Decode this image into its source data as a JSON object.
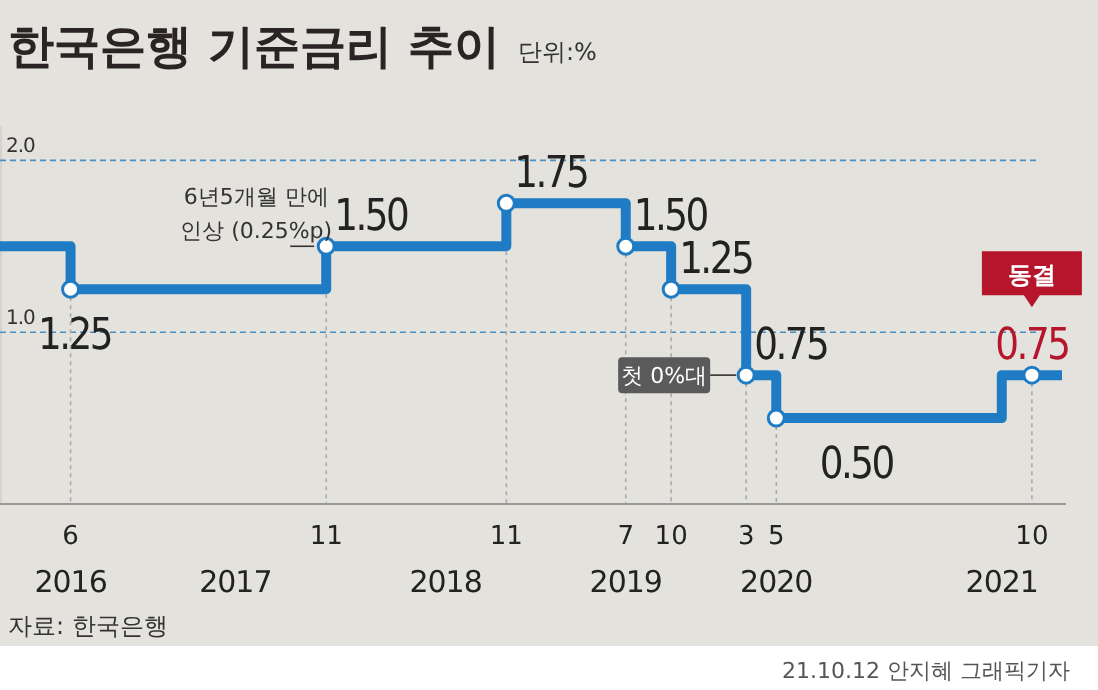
{
  "chart_data": {
    "type": "step",
    "title": "한국은행 기준금리 추이",
    "subtitle": "단위:%",
    "x": [
      "2016-01-10",
      "2016-06",
      "2017-11",
      "2018-11",
      "2019-07",
      "2019-10",
      "2020-03",
      "2020-05",
      "2021-08",
      "2021-10",
      "2021-12"
    ],
    "series": [
      {
        "color": "#1f7cc4",
        "values": [
          1.5,
          1.25,
          1.5,
          1.75,
          1.5,
          1.25,
          0.75,
          0.5,
          0.75,
          0.75,
          0.75
        ],
        "value_labels": [
          null,
          "1.25",
          "1.50",
          "1.75",
          "1.50",
          "1.25",
          "0.75",
          "0.50",
          null,
          "0.75",
          null
        ]
      }
    ],
    "xlim": [
      "2016-01-10",
      "2021-12"
    ],
    "xticks": [
      {
        "value": "2016-06",
        "label": "6"
      },
      {
        "value": "2017-11",
        "label": "11"
      },
      {
        "value": "2018-11",
        "label": "11"
      },
      {
        "value": "2019-07",
        "label": "7"
      },
      {
        "value": "2019-10",
        "label": "10"
      },
      {
        "value": "2020-03",
        "label": "3"
      },
      {
        "value": "2020-05",
        "label": "5"
      },
      {
        "value": "2021-10",
        "label": "10"
      }
    ],
    "x2lim": [
      "2016-01-10",
      "2021-12"
    ],
    "x2ticks": [
      {
        "value": "2016-06",
        "label": "2016"
      },
      {
        "value": "2017-05",
        "label": "2017"
      },
      {
        "value": "2018-07",
        "label": "2018"
      },
      {
        "value": "2019-07",
        "label": "2019"
      },
      {
        "value": "2020-05",
        "label": "2020"
      },
      {
        "value": "2021-08",
        "label": "2021"
      }
    ],
    "ylim": [
      0,
      2.2
    ],
    "yticks": [
      {
        "value": 1,
        "label": "1.0"
      },
      {
        "value": 2,
        "label": "2.0"
      }
    ],
    "grid": "y",
    "marker": "circle",
    "annotations": [
      {
        "text": "6년5개월 만에 인상 (0.25%p)",
        "x": "2017-11",
        "y": 1.5
      },
      {
        "text": "첫 0%대",
        "x": "2020-03",
        "y": 0.75
      },
      "동결",
      "자료: 한국은행",
      "21.10.12 안지혜 그래픽기자"
    ]
  }
}
